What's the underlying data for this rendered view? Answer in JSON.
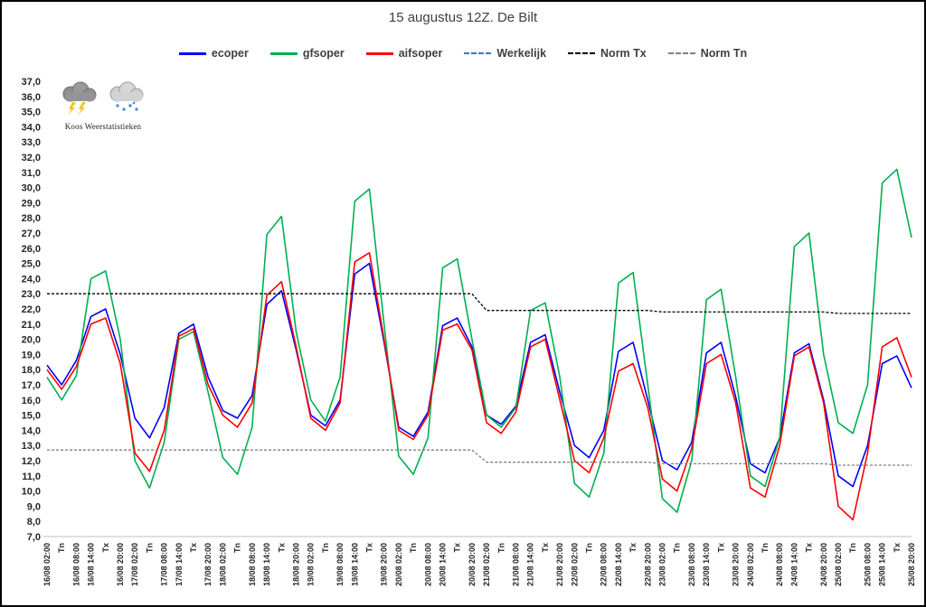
{
  "branding": {
    "logo_text": "Koos Weerstatistieken"
  },
  "chart_data": {
    "type": "line",
    "title": "15 augustus 12Z. De Bilt",
    "ylim": [
      7,
      37
    ],
    "ytick_step": 1,
    "decimal_separator": ",",
    "grid": false,
    "legend_position": "top",
    "categories": [
      "16/08 02:00",
      "Tn",
      "16/08 08:00",
      "16/08 14:00",
      "Tx",
      "16/08 20:00",
      "17/08 02:00",
      "Tn",
      "17/08 08:00",
      "17/08 14:00",
      "Tx",
      "17/08 20:00",
      "18/08 02:00",
      "Tn",
      "18/08 08:00",
      "18/08 14:00",
      "Tx",
      "18/08 20:00",
      "19/08 02:00",
      "Tn",
      "19/08 08:00",
      "19/08 14:00",
      "Tx",
      "19/08 20:00",
      "20/08 02:00",
      "Tn",
      "20/08 08:00",
      "20/08 14:00",
      "Tx",
      "20/08 20:00",
      "21/08 02:00",
      "Tn",
      "21/08 08:00",
      "21/08 14:00",
      "Tx",
      "21/08 20:00",
      "22/08 02:00",
      "Tn",
      "22/08 08:00",
      "22/08 14:00",
      "Tx",
      "22/08 20:00",
      "23/08 02:00",
      "Tn",
      "23/08 08:00",
      "23/08 14:00",
      "Tx",
      "23/08 20:00",
      "24/08 02:00",
      "Tn",
      "24/08 08:00",
      "24/08 14:00",
      "Tx",
      "24/08 20:00",
      "25/08 02:00",
      "Tn",
      "25/08 08:00",
      "25/08 14:00",
      "Tx",
      "25/08 20:00"
    ],
    "series": [
      {
        "name": "ecoper",
        "color": "#0000FF",
        "dash": "solid",
        "values": [
          18.3,
          17.0,
          18.6,
          21.5,
          22.0,
          19.0,
          14.8,
          13.5,
          15.5,
          20.4,
          21.0,
          17.5,
          15.3,
          14.8,
          16.3,
          22.3,
          23.2,
          19.3,
          15.0,
          14.3,
          16.0,
          24.3,
          25.0,
          19.8,
          14.2,
          13.6,
          15.2,
          20.9,
          21.4,
          19.5,
          15.0,
          14.4,
          15.6,
          19.8,
          20.3,
          16.5,
          13.0,
          12.2,
          14.0,
          19.2,
          19.8,
          16.0,
          12.0,
          11.4,
          13.2,
          19.1,
          19.8,
          16.2,
          11.8,
          11.2,
          13.5,
          19.1,
          19.7,
          16.0,
          11.0,
          10.3,
          13.0,
          18.4,
          18.9,
          16.8
        ]
      },
      {
        "name": "gfsoper",
        "color": "#00B050",
        "dash": "solid",
        "values": [
          17.5,
          16.0,
          17.6,
          24.0,
          24.5,
          20.0,
          12.0,
          10.2,
          13.2,
          20.0,
          20.5,
          16.5,
          12.2,
          11.1,
          14.2,
          26.9,
          28.1,
          20.5,
          16.0,
          14.6,
          17.5,
          29.1,
          29.9,
          21.0,
          12.3,
          11.1,
          13.5,
          24.7,
          25.3,
          20.0,
          15.0,
          14.2,
          15.5,
          21.9,
          22.4,
          17.5,
          10.5,
          9.6,
          12.5,
          23.7,
          24.4,
          17.0,
          9.5,
          8.6,
          12.0,
          22.6,
          23.3,
          17.5,
          11.0,
          10.3,
          13.5,
          26.1,
          27.0,
          19.0,
          14.5,
          13.8,
          17.0,
          30.3,
          31.2,
          26.7
        ]
      },
      {
        "name": "aifsoper",
        "color": "#FF0000",
        "dash": "solid",
        "values": [
          18.0,
          16.7,
          18.2,
          21.0,
          21.4,
          18.4,
          12.5,
          11.3,
          14.0,
          20.2,
          20.7,
          17.0,
          15.0,
          14.2,
          15.8,
          22.9,
          23.8,
          19.5,
          14.8,
          14.0,
          15.8,
          25.1,
          25.7,
          20.0,
          14.0,
          13.4,
          15.0,
          20.6,
          21.0,
          19.3,
          14.5,
          13.8,
          15.2,
          19.5,
          20.0,
          16.0,
          12.0,
          11.2,
          13.5,
          17.9,
          18.4,
          15.5,
          10.8,
          10.0,
          12.8,
          18.4,
          19.0,
          15.8,
          10.2,
          9.6,
          13.0,
          18.9,
          19.5,
          15.8,
          9.0,
          8.1,
          12.5,
          19.5,
          20.1,
          17.5
        ]
      },
      {
        "name": "Werkelijk",
        "color": "#4472C4",
        "dash": "dashed",
        "values": [
          null,
          null,
          null,
          null,
          null,
          null,
          null,
          null,
          null,
          null,
          null,
          null,
          null,
          null,
          null,
          null,
          null,
          null,
          null,
          null,
          null,
          null,
          null,
          null,
          null,
          null,
          null,
          null,
          null,
          null,
          null,
          null,
          null,
          null,
          null,
          null,
          null,
          null,
          null,
          null,
          null,
          null,
          null,
          null,
          null,
          null,
          null,
          null,
          null,
          null,
          null,
          null,
          null,
          null,
          null,
          null,
          null,
          null,
          null,
          null
        ]
      },
      {
        "name": "Norm Tx",
        "color": "#000000",
        "dash": "dashed",
        "values": [
          23.0,
          23.0,
          23.0,
          23.0,
          23.0,
          23.0,
          23.0,
          23.0,
          23.0,
          23.0,
          23.0,
          23.0,
          23.0,
          23.0,
          23.0,
          23.0,
          23.0,
          23.0,
          23.0,
          23.0,
          23.0,
          23.0,
          23.0,
          23.0,
          23.0,
          23.0,
          23.0,
          23.0,
          23.0,
          23.0,
          21.9,
          21.9,
          21.9,
          21.9,
          21.9,
          21.9,
          21.9,
          21.9,
          21.9,
          21.9,
          21.9,
          21.9,
          21.8,
          21.8,
          21.8,
          21.8,
          21.8,
          21.8,
          21.8,
          21.8,
          21.8,
          21.8,
          21.8,
          21.8,
          21.7,
          21.7,
          21.7,
          21.7,
          21.7,
          21.7
        ]
      },
      {
        "name": "Norm Tn",
        "color": "#808080",
        "dash": "dashed",
        "values": [
          12.7,
          12.7,
          12.7,
          12.7,
          12.7,
          12.7,
          12.7,
          12.7,
          12.7,
          12.7,
          12.7,
          12.7,
          12.7,
          12.7,
          12.7,
          12.7,
          12.7,
          12.7,
          12.7,
          12.7,
          12.7,
          12.7,
          12.7,
          12.7,
          12.7,
          12.7,
          12.7,
          12.7,
          12.7,
          12.7,
          11.9,
          11.9,
          11.9,
          11.9,
          11.9,
          11.9,
          11.9,
          11.9,
          11.9,
          11.9,
          11.9,
          11.9,
          11.8,
          11.8,
          11.8,
          11.8,
          11.8,
          11.8,
          11.8,
          11.8,
          11.8,
          11.8,
          11.8,
          11.8,
          11.7,
          11.7,
          11.7,
          11.7,
          11.7,
          11.7
        ]
      }
    ]
  }
}
